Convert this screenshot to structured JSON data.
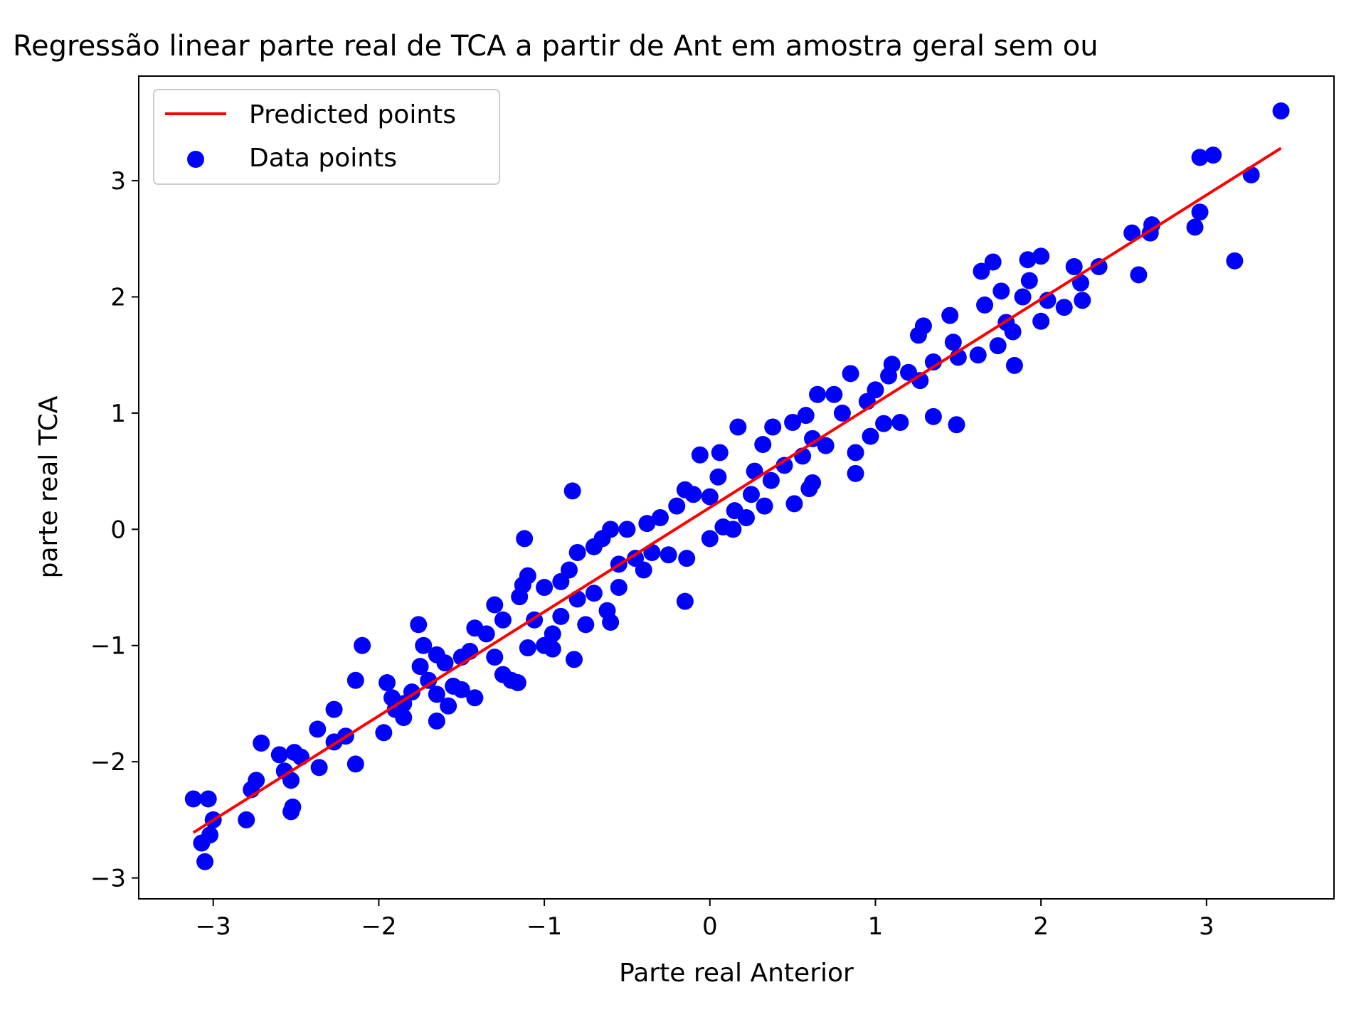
{
  "chart_data": {
    "type": "scatter",
    "title": "Regressão linear parte real de TCA a partir de Ant em amostra geral sem ou",
    "xlabel": "Parte real Anterior",
    "ylabel": "parte real TCA",
    "xlim": [
      -3.45,
      3.77
    ],
    "ylim": [
      -3.18,
      3.9
    ],
    "x_ticks": [
      -3,
      -2,
      -1,
      0,
      1,
      2,
      3
    ],
    "y_ticks": [
      -3,
      -2,
      -1,
      0,
      1,
      2,
      3
    ],
    "x_tick_labels": [
      "−3",
      "−2",
      "−1",
      "0",
      "1",
      "2",
      "3"
    ],
    "y_tick_labels": [
      "−3",
      "−2",
      "−1",
      "0",
      "1",
      "2",
      "3"
    ],
    "grid": false,
    "legend_position": "top-left",
    "series": [
      {
        "name": "Predicted points",
        "kind": "line",
        "color": "#ff0000",
        "points": [
          [
            -3.12,
            -2.61
          ],
          [
            3.45,
            3.28
          ]
        ]
      },
      {
        "name": "Data points",
        "kind": "scatter",
        "color": "#0000ff",
        "points": [
          [
            3.45,
            3.6
          ],
          [
            2.96,
            3.2
          ],
          [
            3.04,
            3.22
          ],
          [
            3.27,
            3.05
          ],
          [
            2.96,
            2.73
          ],
          [
            2.93,
            2.6
          ],
          [
            3.17,
            2.31
          ],
          [
            2.55,
            2.55
          ],
          [
            2.66,
            2.55
          ],
          [
            2.67,
            2.62
          ],
          [
            2.59,
            2.19
          ],
          [
            2.35,
            2.26
          ],
          [
            2.2,
            2.26
          ],
          [
            2.24,
            2.12
          ],
          [
            2.25,
            1.97
          ],
          [
            2.14,
            1.91
          ],
          [
            2.04,
            1.97
          ],
          [
            2.0,
            2.35
          ],
          [
            1.92,
            2.32
          ],
          [
            1.93,
            2.14
          ],
          [
            1.89,
            2.0
          ],
          [
            2.0,
            1.79
          ],
          [
            1.64,
            2.22
          ],
          [
            1.71,
            2.3
          ],
          [
            1.76,
            2.05
          ],
          [
            1.79,
            1.78
          ],
          [
            1.66,
            1.93
          ],
          [
            1.83,
            1.7
          ],
          [
            1.74,
            1.58
          ],
          [
            1.84,
            1.41
          ],
          [
            1.62,
            1.5
          ],
          [
            1.5,
            1.48
          ],
          [
            1.45,
            1.84
          ],
          [
            1.47,
            1.61
          ],
          [
            1.29,
            1.75
          ],
          [
            1.26,
            1.67
          ],
          [
            1.35,
            1.44
          ],
          [
            1.2,
            1.35
          ],
          [
            1.27,
            1.28
          ],
          [
            1.08,
            1.32
          ],
          [
            1.1,
            1.42
          ],
          [
            1.0,
            1.2
          ],
          [
            0.95,
            1.1
          ],
          [
            0.85,
            1.34
          ],
          [
            0.75,
            1.16
          ],
          [
            0.65,
            1.16
          ],
          [
            0.8,
            1.0
          ],
          [
            0.88,
            0.66
          ],
          [
            0.88,
            0.48
          ],
          [
            1.15,
            0.92
          ],
          [
            1.05,
            0.91
          ],
          [
            0.97,
            0.8
          ],
          [
            1.35,
            0.97
          ],
          [
            1.49,
            0.9
          ],
          [
            0.58,
            0.98
          ],
          [
            0.5,
            0.92
          ],
          [
            0.62,
            0.78
          ],
          [
            0.7,
            0.72
          ],
          [
            0.56,
            0.63
          ],
          [
            0.45,
            0.55
          ],
          [
            0.32,
            0.73
          ],
          [
            0.38,
            0.88
          ],
          [
            0.17,
            0.88
          ],
          [
            0.27,
            0.5
          ],
          [
            0.37,
            0.42
          ],
          [
            0.62,
            0.4
          ],
          [
            0.6,
            0.35
          ],
          [
            0.51,
            0.22
          ],
          [
            0.25,
            0.3
          ],
          [
            0.33,
            0.2
          ],
          [
            0.15,
            0.16
          ],
          [
            0.22,
            0.1
          ],
          [
            0.08,
            0.02
          ],
          [
            0.14,
            0.0
          ],
          [
            0.05,
            0.45
          ],
          [
            -0.06,
            0.64
          ],
          [
            0.06,
            0.66
          ],
          [
            0.0,
            0.28
          ],
          [
            -0.1,
            0.3
          ],
          [
            -0.15,
            0.34
          ],
          [
            0.0,
            -0.08
          ],
          [
            -0.2,
            0.2
          ],
          [
            -0.3,
            0.1
          ],
          [
            -0.38,
            0.05
          ],
          [
            -0.5,
            0.0
          ],
          [
            -0.6,
            0.0
          ],
          [
            -0.35,
            -0.2
          ],
          [
            -0.45,
            -0.25
          ],
          [
            -0.25,
            -0.22
          ],
          [
            -0.14,
            -0.25
          ],
          [
            -0.4,
            -0.35
          ],
          [
            -0.55,
            -0.3
          ],
          [
            -0.65,
            -0.08
          ],
          [
            -0.7,
            -0.15
          ],
          [
            -0.8,
            -0.2
          ],
          [
            -0.85,
            -0.35
          ],
          [
            -0.55,
            -0.5
          ],
          [
            -0.7,
            -0.55
          ],
          [
            -0.62,
            -0.7
          ],
          [
            -0.8,
            -0.6
          ],
          [
            -0.9,
            -0.45
          ],
          [
            -1.0,
            -0.5
          ],
          [
            -1.1,
            -0.4
          ],
          [
            -1.13,
            -0.48
          ],
          [
            -1.15,
            -0.58
          ],
          [
            -1.06,
            -0.78
          ],
          [
            -0.9,
            -0.75
          ],
          [
            -0.95,
            -0.9
          ],
          [
            -0.75,
            -0.82
          ],
          [
            -0.6,
            -0.8
          ],
          [
            -1.0,
            -1.0
          ],
          [
            -1.1,
            -1.02
          ],
          [
            -0.95,
            -1.03
          ],
          [
            -1.25,
            -0.78
          ],
          [
            -1.3,
            -0.65
          ],
          [
            -1.42,
            -0.85
          ],
          [
            -1.35,
            -0.9
          ],
          [
            -1.45,
            -1.05
          ],
          [
            -1.5,
            -1.1
          ],
          [
            -1.3,
            -1.1
          ],
          [
            -1.12,
            -0.08
          ],
          [
            -0.83,
            0.33
          ],
          [
            -0.15,
            -0.62
          ],
          [
            -0.82,
            -1.12
          ],
          [
            -1.76,
            -0.82
          ],
          [
            -1.73,
            -1.0
          ],
          [
            -1.65,
            -1.08
          ],
          [
            -1.6,
            -1.15
          ],
          [
            -1.75,
            -1.18
          ],
          [
            -1.7,
            -1.3
          ],
          [
            -1.55,
            -1.35
          ],
          [
            -1.8,
            -1.4
          ],
          [
            -1.65,
            -1.42
          ],
          [
            -1.42,
            -1.45
          ],
          [
            -1.5,
            -1.38
          ],
          [
            -1.58,
            -1.52
          ],
          [
            -1.25,
            -1.25
          ],
          [
            -1.2,
            -1.3
          ],
          [
            -1.16,
            -1.32
          ],
          [
            -1.85,
            -1.5
          ],
          [
            -1.9,
            -1.55
          ],
          [
            -1.92,
            -1.45
          ],
          [
            -1.95,
            -1.32
          ],
          [
            -1.85,
            -1.62
          ],
          [
            -1.65,
            -1.65
          ],
          [
            -2.1,
            -1.0
          ],
          [
            -2.14,
            -1.3
          ],
          [
            -1.97,
            -1.75
          ],
          [
            -2.27,
            -1.55
          ],
          [
            -2.37,
            -1.72
          ],
          [
            -2.2,
            -1.78
          ],
          [
            -2.27,
            -1.83
          ],
          [
            -2.14,
            -2.02
          ],
          [
            -2.71,
            -1.84
          ],
          [
            -2.36,
            -2.05
          ],
          [
            -2.51,
            -1.92
          ],
          [
            -2.6,
            -1.94
          ],
          [
            -2.47,
            -1.96
          ],
          [
            -2.57,
            -2.08
          ],
          [
            -2.53,
            -2.16
          ],
          [
            -2.52,
            -2.39
          ],
          [
            -2.53,
            -2.43
          ],
          [
            -2.74,
            -2.16
          ],
          [
            -2.77,
            -2.24
          ],
          [
            -2.8,
            -2.5
          ],
          [
            -3.12,
            -2.32
          ],
          [
            -3.03,
            -2.32
          ],
          [
            -3.0,
            -2.5
          ],
          [
            -3.02,
            -2.63
          ],
          [
            -3.07,
            -2.7
          ],
          [
            -3.05,
            -2.86
          ]
        ]
      }
    ]
  }
}
